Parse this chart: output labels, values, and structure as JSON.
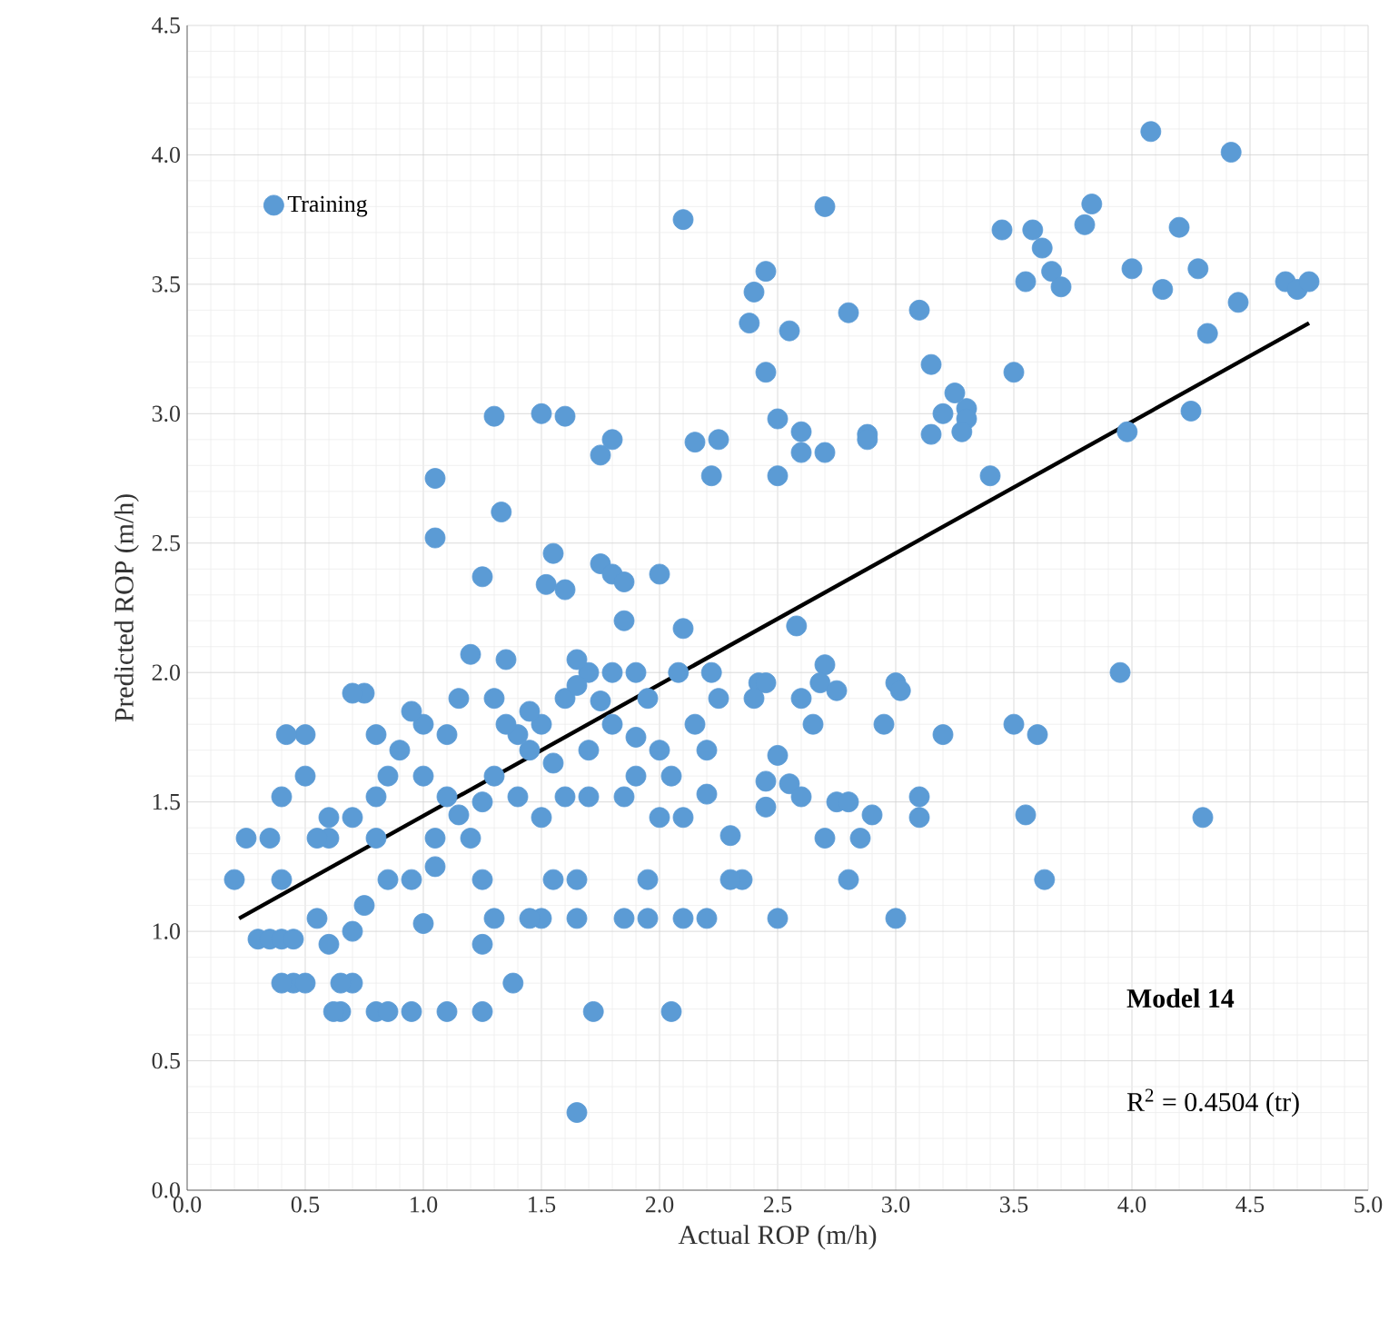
{
  "chart_data": {
    "type": "scatter",
    "xlabel": "Actual ROP (m/h)",
    "ylabel": "Predicted ROP (m/h)",
    "xlim": [
      0,
      5
    ],
    "ylim": [
      0,
      4.5
    ],
    "xticks": [
      {
        "value": 0,
        "label": "0.0"
      },
      0.5,
      {
        "value": 1,
        "label": "1.0"
      },
      1.5,
      {
        "value": 2,
        "label": "2.0"
      },
      2.5,
      {
        "value": 3,
        "label": "3.0"
      },
      3.5,
      {
        "value": 4,
        "label": "4.0"
      },
      4.5,
      {
        "value": 5,
        "label": "5.0"
      }
    ],
    "yticks": [
      {
        "value": 0,
        "label": "0.0"
      },
      0.5,
      {
        "value": 1,
        "label": "1.0"
      },
      1.5,
      {
        "value": 2,
        "label": "2.0"
      },
      2.5,
      {
        "value": 3,
        "label": "3.0"
      },
      3.5,
      {
        "value": 4,
        "label": "4.0"
      },
      4.5
    ],
    "grid": true,
    "legend": "top left",
    "annotations": [
      "Model 14",
      "R$^{2}$ = 0.4504 (tr)"
    ],
    "series": [
      {
        "name": "Training",
        "color": "#5b9bd5",
        "marker": "circle",
        "x": [
          2.1,
          2.7,
          1.3,
          1.5,
          1.6,
          1.05,
          1.05,
          1.33,
          1.25,
          1.75,
          1.8,
          2.15,
          2.25,
          2.22,
          2.38,
          2.4,
          2.45,
          2.45,
          2.55,
          2.5,
          2.5,
          2.6,
          2.6,
          2.7,
          2.8,
          2.88,
          2.88,
          3.1,
          3.15,
          3.2,
          3.15,
          3.25,
          3.3,
          3.3,
          3.28,
          3.4,
          3.45,
          3.5,
          3.55,
          3.58,
          3.62,
          3.66,
          3.7,
          3.8,
          3.83,
          4.0,
          3.98,
          4.08,
          4.13,
          4.2,
          4.25,
          4.28,
          4.32,
          4.42,
          4.45,
          4.65,
          4.7,
          4.75,
          3.5,
          3.6,
          3.95,
          3.55,
          3.63,
          4.3,
          3.1,
          3.2,
          3.1,
          3.0,
          3.02,
          2.95,
          3.0,
          2.75,
          2.8,
          2.8,
          2.9,
          2.85,
          2.7,
          2.65,
          2.7,
          2.68,
          2.75,
          2.6,
          2.58,
          2.55,
          2.6,
          2.5,
          2.45,
          2.45,
          2.5,
          2.42,
          2.45,
          2.4,
          2.3,
          2.35,
          2.3,
          2.2,
          2.2,
          2.2,
          2.22,
          2.25,
          2.1,
          2.1,
          2.05,
          2.0,
          2.0,
          1.95,
          1.95,
          1.85,
          1.85,
          1.9,
          1.8,
          1.8,
          1.7,
          1.75,
          1.8,
          1.7,
          1.65,
          1.6,
          1.6,
          1.6,
          1.55,
          1.52,
          1.5,
          1.45,
          1.5,
          1.5,
          1.4,
          1.4,
          1.45,
          1.38,
          1.3,
          1.35,
          1.3,
          1.25,
          1.25,
          1.2,
          1.3,
          1.25,
          1.25,
          1.2,
          1.15,
          1.1,
          1.1,
          1.05,
          1.0,
          1.0,
          0.95,
          0.95,
          1.0,
          0.95,
          1.1,
          0.9,
          0.85,
          0.85,
          0.8,
          0.8,
          0.8,
          0.75,
          0.7,
          0.7,
          0.75,
          0.7,
          0.7,
          0.65,
          0.65,
          0.6,
          0.6,
          0.6,
          0.55,
          0.5,
          0.42,
          0.5,
          0.4,
          0.35,
          0.25,
          0.2,
          0.3,
          0.35,
          0.4,
          0.45,
          0.4,
          0.45,
          0.4,
          0.5,
          0.55,
          0.62,
          0.8,
          0.85,
          1.65,
          1.72,
          1.65,
          1.65,
          1.7,
          1.75,
          1.9,
          1.95,
          2.0,
          2.05,
          2.15,
          1.85,
          2.08,
          1.55,
          1.45,
          1.65,
          1.9,
          1.35,
          1.15,
          1.05,
          1.55,
          2.1,
          1.85
        ],
        "values": [
          3.75,
          3.8,
          2.99,
          3.0,
          2.99,
          2.75,
          2.52,
          2.62,
          2.37,
          2.84,
          2.9,
          2.89,
          2.9,
          2.76,
          3.35,
          3.47,
          3.55,
          3.16,
          3.32,
          2.98,
          2.76,
          2.93,
          2.85,
          2.85,
          3.39,
          2.92,
          2.9,
          3.4,
          3.19,
          3.0,
          2.92,
          3.08,
          3.02,
          2.98,
          2.93,
          2.76,
          3.71,
          3.16,
          3.51,
          3.71,
          3.64,
          3.55,
          3.49,
          3.73,
          3.81,
          3.56,
          2.93,
          4.09,
          3.48,
          3.72,
          3.01,
          3.56,
          3.31,
          4.01,
          3.43,
          3.51,
          3.48,
          3.51,
          1.8,
          1.76,
          2.0,
          1.45,
          1.2,
          1.44,
          1.52,
          1.76,
          1.44,
          1.96,
          1.93,
          1.8,
          1.05,
          1.5,
          1.5,
          1.2,
          1.45,
          1.36,
          1.36,
          1.8,
          2.03,
          1.96,
          1.93,
          1.9,
          2.18,
          1.57,
          1.52,
          1.68,
          1.58,
          1.48,
          1.05,
          1.96,
          1.96,
          1.9,
          1.37,
          1.2,
          1.2,
          1.05,
          1.53,
          1.7,
          2.0,
          1.9,
          2.17,
          1.44,
          0.69,
          2.38,
          1.44,
          1.05,
          1.2,
          1.05,
          1.52,
          1.6,
          2.0,
          1.8,
          1.7,
          2.42,
          2.38,
          2.0,
          2.05,
          1.9,
          2.32,
          1.52,
          2.46,
          2.34,
          1.8,
          1.7,
          1.44,
          1.05,
          1.76,
          1.52,
          1.05,
          0.8,
          1.9,
          1.8,
          1.6,
          1.5,
          1.2,
          1.36,
          1.05,
          0.95,
          0.69,
          2.07,
          1.9,
          1.76,
          1.52,
          1.36,
          1.8,
          1.6,
          1.85,
          1.2,
          1.03,
          0.69,
          0.69,
          1.7,
          1.6,
          1.2,
          1.76,
          1.52,
          1.36,
          1.92,
          1.92,
          1.44,
          1.1,
          1.0,
          0.8,
          0.8,
          0.69,
          1.44,
          1.36,
          0.95,
          1.05,
          1.76,
          1.76,
          1.6,
          1.52,
          1.36,
          1.36,
          1.2,
          0.97,
          0.97,
          0.97,
          0.97,
          1.2,
          0.8,
          0.8,
          0.8,
          1.36,
          0.69,
          0.69,
          0.69,
          0.3,
          0.69,
          1.05,
          1.2,
          1.52,
          1.89,
          2.0,
          1.9,
          1.7,
          1.6,
          1.8,
          2.2,
          2.0,
          1.65,
          1.85,
          1.95,
          1.75,
          2.05,
          1.45,
          1.25,
          1.2,
          1.05,
          2.35
        ]
      },
      {
        "type": "line",
        "color": "#000000",
        "marker": "none",
        "x": [
          0.22,
          4.75
        ],
        "values": [
          1.05,
          3.35
        ]
      }
    ]
  }
}
